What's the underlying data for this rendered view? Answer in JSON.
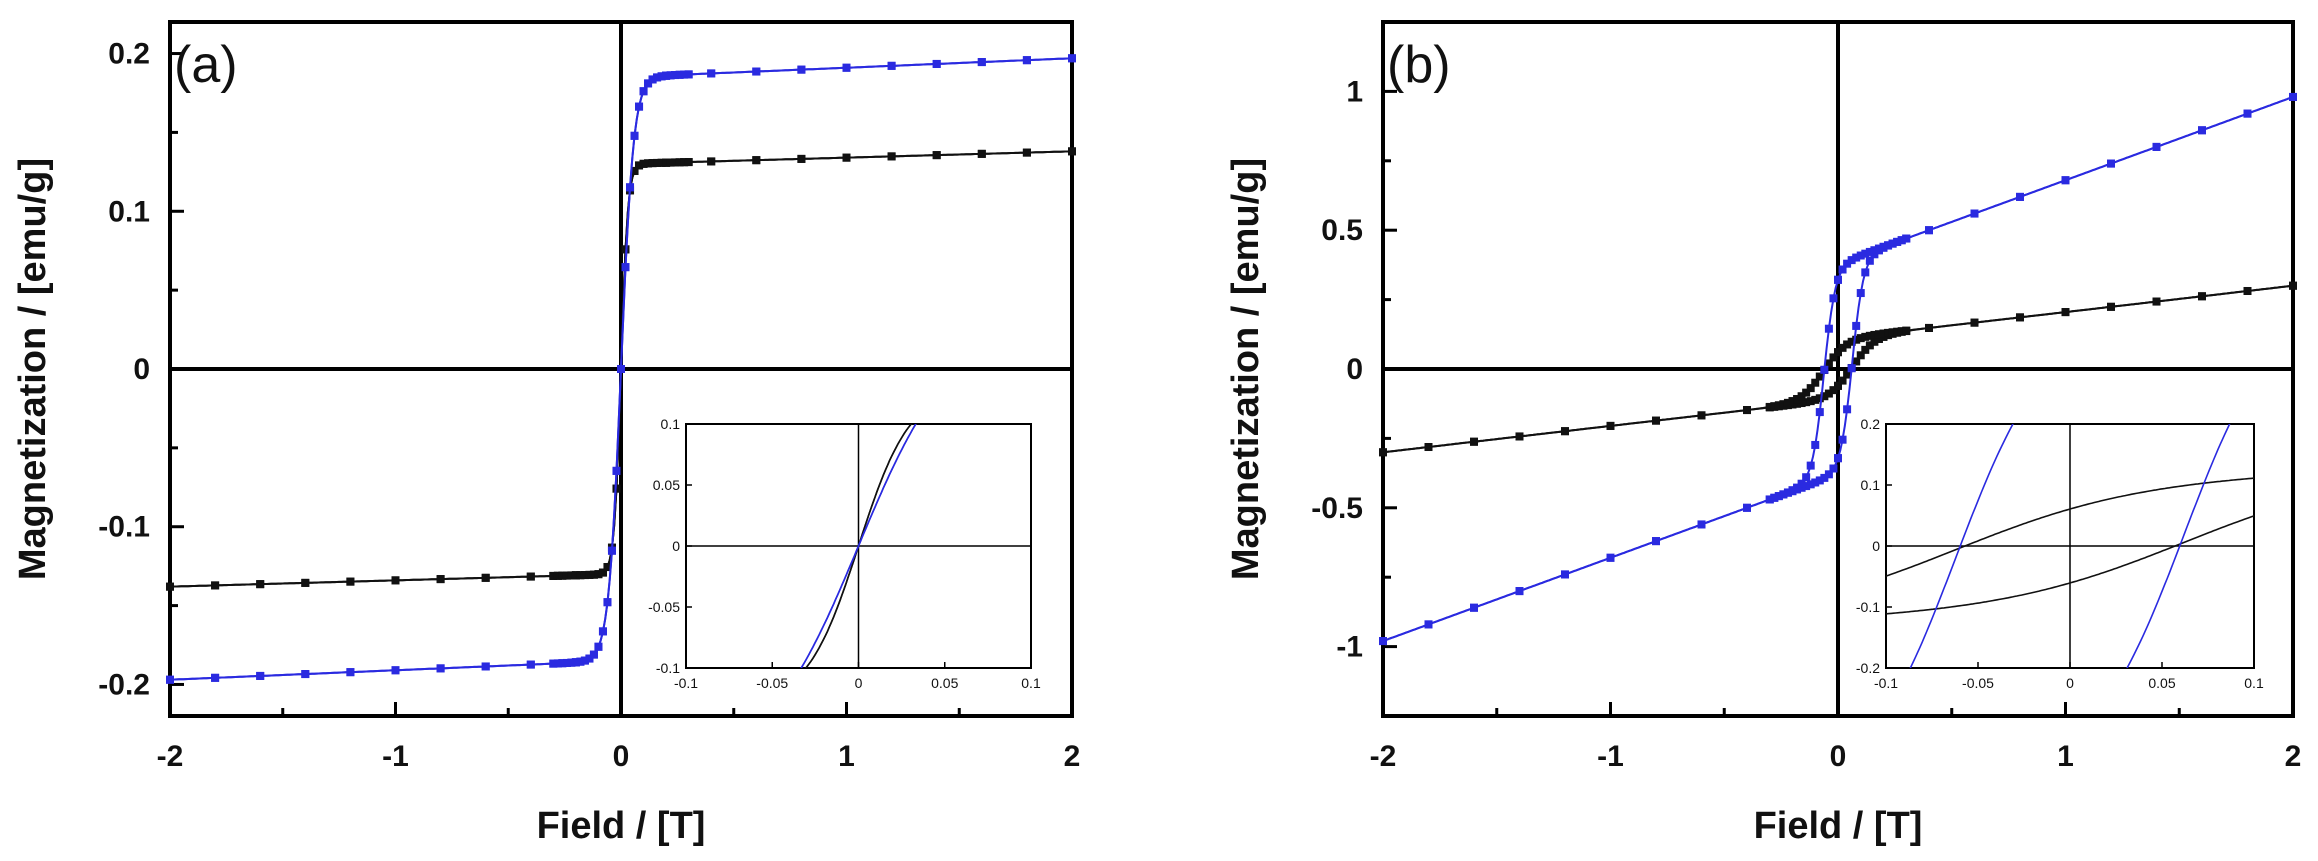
{
  "chart_data": [
    {
      "type": "line",
      "panel_label": "(a)",
      "xlabel": "Field / [T]",
      "ylabel": "Magnetization / [emu/g]",
      "xlim": [
        -2,
        2
      ],
      "ylim": [
        -0.22,
        0.22
      ],
      "xticks": [
        -2,
        -1,
        0,
        1,
        2
      ],
      "xtick_labels": [
        "-2",
        "-1",
        "0",
        "1",
        "2"
      ],
      "yticks": [
        -0.2,
        -0.1,
        0,
        0.1,
        0.2
      ],
      "ytick_labels": [
        "-0.2",
        "-0.1",
        "0",
        "0.1",
        "0.2"
      ],
      "grid": false,
      "series": [
        {
          "name": "black",
          "color": "#111111",
          "saturation": 0.13,
          "coercivity": 0.0,
          "shape": "sharp",
          "width": 0.03,
          "slope": 0.004
        },
        {
          "name": "blue",
          "color": "#2a2ae0",
          "saturation": 0.185,
          "coercivity": 0.0,
          "shape": "sharp",
          "width": 0.055,
          "slope": 0.006
        }
      ],
      "inset": {
        "xlim": [
          -0.1,
          0.1
        ],
        "ylim": [
          -0.1,
          0.1
        ],
        "xticks": [
          -0.1,
          -0.05,
          0,
          0.05,
          0.1
        ],
        "xtick_labels": [
          "-0.1",
          "-0.05",
          "0",
          "0.05",
          "0.1"
        ],
        "yticks": [
          -0.1,
          -0.05,
          0,
          0.05,
          0.1
        ],
        "ytick_labels": [
          "-0.1",
          "-0.05",
          "0",
          "0.05",
          "0.1"
        ]
      }
    },
    {
      "type": "line",
      "panel_label": "(b)",
      "xlabel": "Field / [T]",
      "ylabel": "Magnetization / [emu/g]",
      "xlim": [
        -2,
        2
      ],
      "ylim": [
        -1.25,
        1.25
      ],
      "xticks": [
        -2,
        -1,
        0,
        1,
        2
      ],
      "xtick_labels": [
        "-2",
        "-1",
        "0",
        "1",
        "2"
      ],
      "yticks": [
        -1,
        -0.5,
        0,
        0.5,
        1
      ],
      "ytick_labels": [
        "-1",
        "-0.5",
        "0",
        "0.5",
        "1"
      ],
      "grid": false,
      "series": [
        {
          "name": "black",
          "color": "#111111",
          "saturation": 0.11,
          "coercivity": 0.062,
          "shape": "wide",
          "width": 0.1,
          "slope": 0.095
        },
        {
          "name": "blue",
          "color": "#2a2ae0",
          "saturation": 0.38,
          "coercivity": 0.062,
          "shape": "wide",
          "width": 0.05,
          "slope": 0.3
        }
      ],
      "inset": {
        "xlim": [
          -0.1,
          0.1
        ],
        "ylim": [
          -0.2,
          0.2
        ],
        "xticks": [
          -0.1,
          -0.05,
          0,
          0.05,
          0.1
        ],
        "xtick_labels": [
          "-0.1",
          "-0.05",
          "0",
          "0.05",
          "0.1"
        ],
        "yticks": [
          -0.2,
          -0.1,
          0,
          0.1,
          0.2
        ],
        "ytick_labels": [
          "-0.2",
          "-0.1",
          "0",
          "0.1",
          "0.2"
        ]
      }
    }
  ]
}
